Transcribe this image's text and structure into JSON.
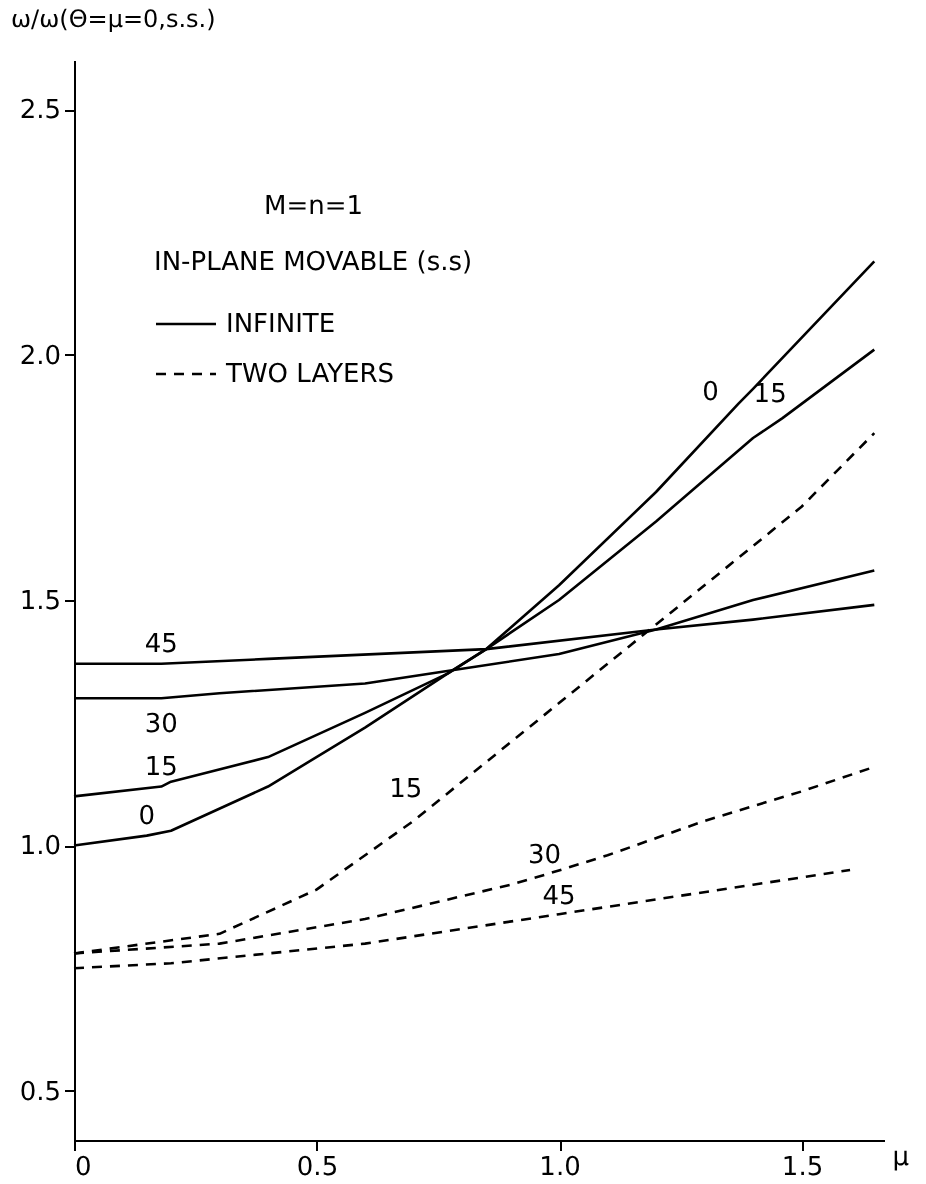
{
  "chart_data": {
    "type": "line",
    "xlabel": "μ",
    "ylabel": "ω/ω(Θ=μ=0,s.s.)",
    "legend_title": "IN-PLANE MOVABLE (s.s)",
    "legend": "top left",
    "grid": false,
    "marker": "none",
    "xlim": [
      0,
      1.67
    ],
    "ylim": [
      0.4,
      2.6
    ],
    "xticks": [
      0,
      {
        "value": 0.5,
        "label": "0.5"
      },
      {
        "value": 1,
        "label": "1.0"
      },
      {
        "value": 1.5,
        "label": "1.5"
      }
    ],
    "yticks": [
      0.5,
      {
        "value": 1,
        "label": "1.0"
      },
      1.5,
      {
        "value": 2,
        "label": "2.0"
      },
      2.5
    ],
    "series": [
      {
        "name": "INFINITE",
        "color": "#000000",
        "line_style": "solid",
        "x": [
          0,
          0.15,
          0.2,
          0.4,
          0.6,
          0.77,
          0.85,
          1.0,
          1.2,
          1.37,
          1.4,
          1.65
        ],
        "values": [
          1.0,
          1.02,
          1.03,
          1.12,
          1.24,
          1.35,
          1.4,
          1.53,
          1.72,
          1.9,
          1.93,
          2.19
        ]
      },
      {
        "color": "#000000",
        "line_style": "solid",
        "x": [
          0,
          0.18,
          0.2,
          0.4,
          0.6,
          0.77,
          0.85,
          1.0,
          1.2,
          1.4,
          1.46,
          1.65
        ],
        "values": [
          1.1,
          1.12,
          1.13,
          1.18,
          1.27,
          1.35,
          1.4,
          1.5,
          1.66,
          1.83,
          1.87,
          2.01
        ]
      },
      {
        "color": "#000000",
        "line_style": "solid",
        "x": [
          0,
          0.18,
          0.3,
          0.6,
          0.8,
          1.0,
          1.2,
          1.4,
          1.65
        ],
        "values": [
          1.3,
          1.3,
          1.31,
          1.33,
          1.36,
          1.39,
          1.44,
          1.5,
          1.56
        ]
      },
      {
        "color": "#000000",
        "line_style": "solid",
        "x": [
          0,
          0.18,
          0.4,
          0.85,
          1.2,
          1.4,
          1.65
        ],
        "values": [
          1.37,
          1.37,
          1.38,
          1.4,
          1.44,
          1.46,
          1.49
        ]
      },
      {
        "name": "TWO LAYERS",
        "color": "#000000",
        "line_style": "dashed",
        "x": [
          0,
          0.3,
          0.5,
          0.7,
          0.75,
          0.85,
          1.0,
          1.15,
          1.3,
          1.5,
          1.65
        ],
        "values": [
          0.78,
          0.82,
          0.91,
          1.05,
          1.09,
          1.17,
          1.29,
          1.41,
          1.53,
          1.69,
          1.84
        ]
      },
      {
        "color": "#000000",
        "line_style": "dashed",
        "x": [
          0,
          0.3,
          0.6,
          0.9,
          0.97,
          1.1,
          1.3,
          1.5,
          1.65
        ],
        "values": [
          0.78,
          0.8,
          0.85,
          0.92,
          0.94,
          0.98,
          1.05,
          1.11,
          1.16
        ]
      },
      {
        "color": "#000000",
        "line_style": "dashed",
        "x": [
          0,
          0.2,
          0.4,
          0.6,
          0.8,
          1.0,
          1.2,
          1.4,
          1.6
        ],
        "values": [
          0.75,
          0.76,
          0.78,
          0.8,
          0.83,
          0.86,
          0.89,
          0.92,
          0.95
        ]
      }
    ],
    "annotations": [
      "M=n=1",
      {
        "text": "45",
        "x": 0.18,
        "y": 1.37
      },
      {
        "text": "30",
        "x": 0.18,
        "y": 1.3
      },
      {
        "text": "15",
        "x": 0.18,
        "y": 1.12
      },
      {
        "text": "0",
        "x": 0.15,
        "y": 1.02
      },
      {
        "text": "0",
        "x": 1.37,
        "y": 1.9
      },
      {
        "text": "15",
        "x": 1.46,
        "y": 1.87
      },
      {
        "text": "15",
        "x": 0.75,
        "y": 1.09
      },
      {
        "text": "30",
        "x": 0.97,
        "y": 0.94
      },
      {
        "text": "45",
        "x": 1.0,
        "y": 0.86
      }
    ]
  }
}
